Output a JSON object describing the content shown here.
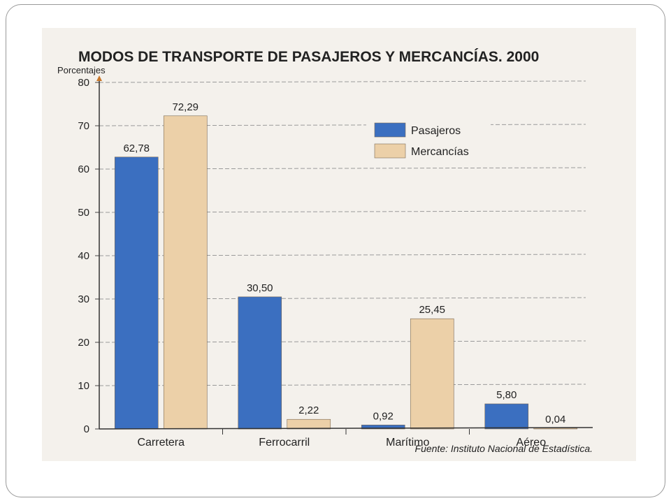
{
  "chart_data": {
    "type": "bar",
    "title": "MODOS DE TRANSPORTE DE PASAJEROS Y MERCANCÍAS. 2000",
    "ylabel": "Porcentajes",
    "ylim": [
      0,
      80
    ],
    "yticks": [
      0,
      10,
      20,
      30,
      40,
      50,
      60,
      70,
      80
    ],
    "categories": [
      "Carretera",
      "Ferrocarril",
      "Marítimo",
      "Aéreo"
    ],
    "series": [
      {
        "name": "Pasajeros",
        "values": [
          62.78,
          30.5,
          0.92,
          5.8
        ],
        "labels": [
          "62,78",
          "30,50",
          "0,92",
          "5,80"
        ],
        "color": "#3b6fc0"
      },
      {
        "name": "Mercancías",
        "values": [
          72.29,
          2.22,
          25.45,
          0.04
        ],
        "labels": [
          "72,29",
          "2,22",
          "25,45",
          "0,04"
        ],
        "color": "#ecd0a8"
      }
    ],
    "grid": true,
    "legend": "top-right",
    "source": "Fuente: Instituto Nacional de Estadística."
  }
}
